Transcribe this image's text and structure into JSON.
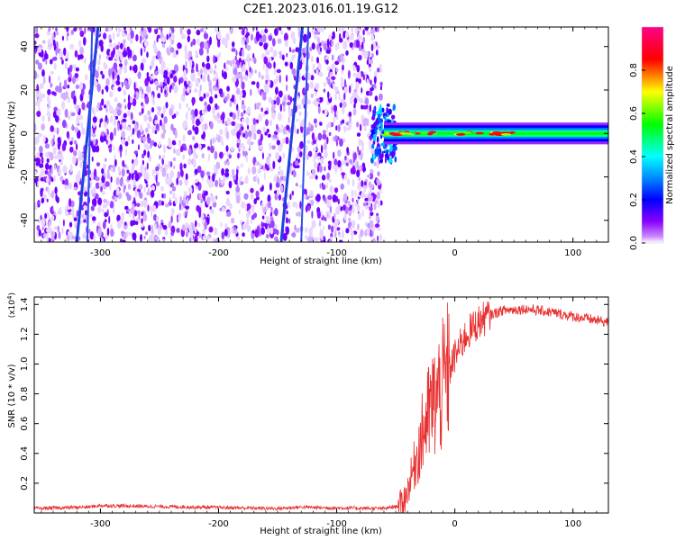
{
  "title": "C2E1.2023.016.01.19.G12",
  "chart_data": [
    {
      "type": "heatmap",
      "xlabel": "Height of straight line (km)",
      "ylabel": "Frequency (Hz)",
      "xlim": [
        -356,
        130
      ],
      "ylim": [
        -50,
        49
      ],
      "xticks": [
        -300,
        -200,
        -100,
        0,
        100
      ],
      "yticks": [
        -40,
        -20,
        0,
        20,
        40
      ],
      "noise_region_x": [
        -356,
        -62
      ],
      "transition_x": [
        -70,
        -50
      ],
      "signal_band": {
        "x": [
          -60,
          130
        ],
        "center": 0,
        "halfwidth": 5,
        "peak_amplitude": 0.95
      },
      "streaks": [
        {
          "x_bottom": -320,
          "x_top": -302
        },
        {
          "x_bottom": -311,
          "x_top": -307
        },
        {
          "x_bottom": -147,
          "x_top": -129
        },
        {
          "x_bottom": -130,
          "x_top": -124
        }
      ],
      "colorbar": {
        "label": "Normalized spectral amplitude",
        "range": [
          0.0,
          1.0
        ],
        "ticks": [
          0.0,
          0.2,
          0.4,
          0.6,
          0.8
        ],
        "colors": [
          "#ffffff",
          "#8800ff",
          "#0000ff",
          "#00ffff",
          "#00ff00",
          "#ffff00",
          "#ff0000",
          "#ff0088"
        ]
      }
    },
    {
      "type": "line",
      "xlabel": "Height of straight line (km)",
      "ylabel": "SNR (10 * v/v)",
      "yscale_label": "(x10",
      "yscale_exp": "4",
      "yscale_close": ")",
      "xlim": [
        -356,
        130
      ],
      "ylim": [
        0.0,
        1.45
      ],
      "xticks": [
        -300,
        -200,
        -100,
        0,
        100
      ],
      "yticks": [
        0.2,
        0.4,
        0.6,
        0.8,
        1.0,
        1.2,
        1.4
      ],
      "color": "#e83030",
      "profile_x": [
        -356,
        -310,
        -300,
        -150,
        -130,
        -110,
        -60,
        -45,
        -40,
        -35,
        -30,
        -25,
        -20,
        -10,
        0,
        10,
        20,
        30,
        40,
        60,
        80,
        100,
        130
      ],
      "profile_y": [
        0.03,
        0.04,
        0.05,
        0.03,
        0.04,
        0.035,
        0.03,
        0.05,
        0.15,
        0.3,
        0.45,
        0.6,
        0.7,
        0.85,
        1.05,
        1.2,
        1.28,
        1.33,
        1.36,
        1.37,
        1.35,
        1.32,
        1.28
      ]
    }
  ]
}
